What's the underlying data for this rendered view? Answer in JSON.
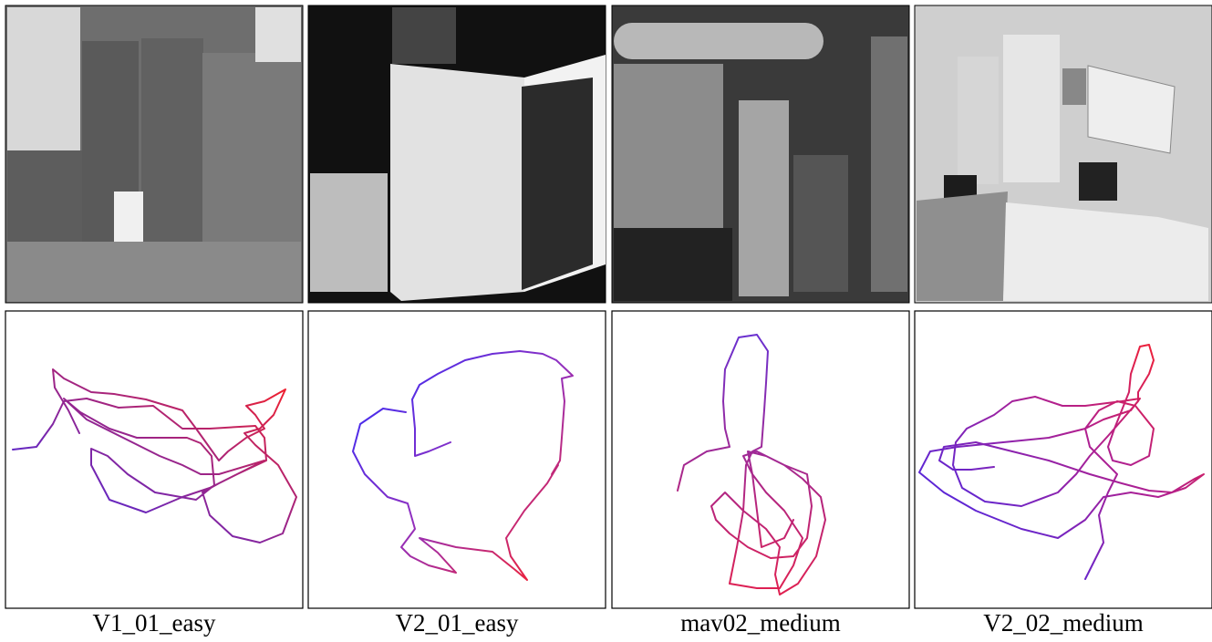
{
  "captions": [
    "V1_01_easy",
    "V2_01_easy",
    "mav02_medium",
    "V2_02_medium"
  ]
}
